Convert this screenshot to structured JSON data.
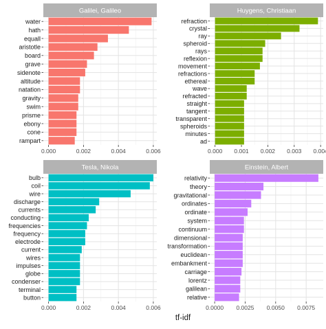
{
  "chart_data": {
    "type": "bar",
    "orientation": "horizontal",
    "layout": "facet-grid-2x2",
    "xlabel": "tf-idf",
    "ylabel": "",
    "grid": true,
    "legend": "none",
    "panels": [
      {
        "title": "Galilei, Galileo",
        "color": "#F8766D",
        "categories": [
          "water",
          "hath",
          "equall",
          "aristotle",
          "board",
          "grave",
          "sidenote",
          "altitude",
          "natation",
          "gravity",
          "swim",
          "prisme",
          "ebony",
          "cone",
          "rampart"
        ],
        "values": [
          0.0059,
          0.0046,
          0.0034,
          0.0028,
          0.0026,
          0.0022,
          0.0021,
          0.0018,
          0.0018,
          0.0017,
          0.0017,
          0.0016,
          0.0016,
          0.0016,
          0.0015
        ],
        "xlim": [
          -0.0003,
          0.0062
        ],
        "xticks": [
          0,
          0.002,
          0.004,
          0.006
        ],
        "xtick_labels": [
          "0.000",
          "0.002",
          "0.004",
          "0.006"
        ]
      },
      {
        "title": "Huygens, Christiaan",
        "color": "#7CAE00",
        "categories": [
          "refraction",
          "crystal",
          "ray",
          "spheroid",
          "rays",
          "reflexion",
          "movement",
          "refractions",
          "ethereal",
          "wave",
          "refracted",
          "straight",
          "tangent",
          "transparent",
          "spheroids",
          "minutes",
          "ad"
        ],
        "values": [
          0.0039,
          0.0032,
          0.0025,
          0.0019,
          0.0018,
          0.0018,
          0.0017,
          0.0015,
          0.0015,
          0.0012,
          0.0012,
          0.0011,
          0.0011,
          0.0011,
          0.0011,
          0.0011,
          0.0011
        ],
        "xlim": [
          -0.0002,
          0.0041
        ],
        "xticks": [
          0,
          0.001,
          0.002,
          0.003,
          0.004
        ],
        "xtick_labels": [
          "0.000",
          "0.001",
          "0.002",
          "0.003",
          "0.004"
        ]
      },
      {
        "title": "Tesla, Nikola",
        "color": "#00BFC4",
        "categories": [
          "bulb",
          "coil",
          "wire",
          "discharge",
          "currents",
          "conducting",
          "frequencies",
          "frequency",
          "electrode",
          "current",
          "wires",
          "impulses",
          "globe",
          "condenser",
          "terminal",
          "button"
        ],
        "values": [
          0.006,
          0.0058,
          0.0047,
          0.0029,
          0.0027,
          0.0023,
          0.0022,
          0.0021,
          0.0021,
          0.0019,
          0.0018,
          0.0018,
          0.0018,
          0.0018,
          0.0016,
          0.0016
        ],
        "xlim": [
          -0.0003,
          0.0062
        ],
        "xticks": [
          0,
          0.002,
          0.004,
          0.006
        ],
        "xtick_labels": [
          "0.000",
          "0.002",
          "0.004",
          "0.006"
        ]
      },
      {
        "title": "Einstein, Albert",
        "color": "#C77CFF",
        "categories": [
          "relativity",
          "theory",
          "gravitational",
          "ordinates",
          "ordinate",
          "system",
          "continuum",
          "dimensional",
          "transformation",
          "euclidean",
          "embankment",
          "carriage",
          "lorentz",
          "galilean",
          "relative"
        ],
        "values": [
          0.0085,
          0.004,
          0.0038,
          0.003,
          0.0027,
          0.0024,
          0.0024,
          0.0023,
          0.0023,
          0.0023,
          0.0023,
          0.0022,
          0.0021,
          0.0021,
          0.002
        ],
        "xlim": [
          -0.0004,
          0.0089
        ],
        "xticks": [
          0,
          0.0025,
          0.005,
          0.0075
        ],
        "xtick_labels": [
          "0.0000",
          "0.0025",
          "0.0050",
          "0.0075"
        ]
      }
    ]
  }
}
